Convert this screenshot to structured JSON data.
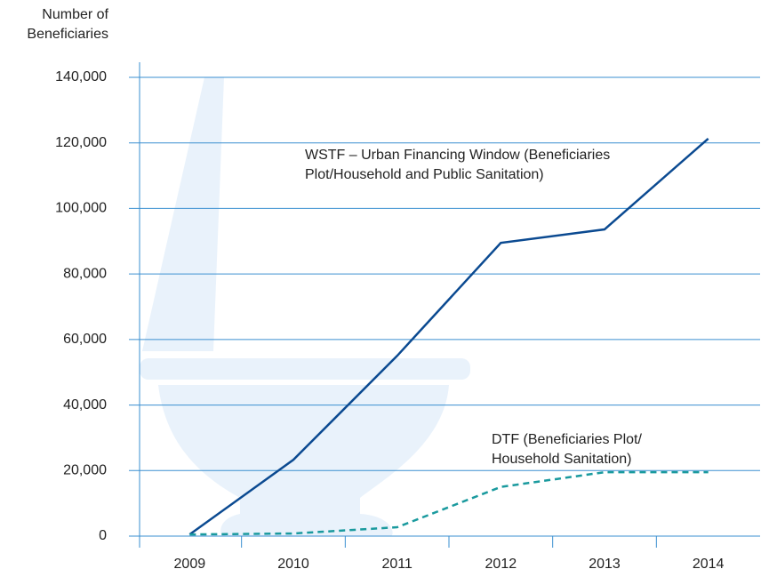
{
  "chart_data": {
    "type": "line",
    "y_axis_title": "Number of Beneficiaries",
    "categories": [
      "2009",
      "2010",
      "2011",
      "2012",
      "2013",
      "2014"
    ],
    "series": [
      {
        "name": "WSTF – Urban Financing Window (Beneficiaries Plot/Household and Public Sanitation)",
        "color": "#0b4a91",
        "dashed": false,
        "values": [
          500,
          23300,
          55000,
          89500,
          93600,
          121300
        ]
      },
      {
        "name": "DTF (Beneficiaries Plot/ Household Sanitation)",
        "color": "#1a9a9e",
        "dashed": true,
        "values": [
          500,
          800,
          2700,
          15000,
          19500,
          19500
        ]
      }
    ],
    "ylim": [
      0,
      140000
    ],
    "yticks": [
      0,
      {
        "value": 20000,
        "label": "20,000"
      },
      {
        "value": 40000,
        "label": "40,000"
      },
      {
        "value": 60000,
        "label": "60,000"
      },
      {
        "value": 80000,
        "label": "80,000"
      },
      {
        "value": 100000,
        "label": "100,000"
      },
      {
        "value": 120000,
        "label": "120,000"
      },
      {
        "value": 140000,
        "label": "140,000"
      }
    ],
    "grid": true,
    "grid_color": "#3a8fd0"
  }
}
